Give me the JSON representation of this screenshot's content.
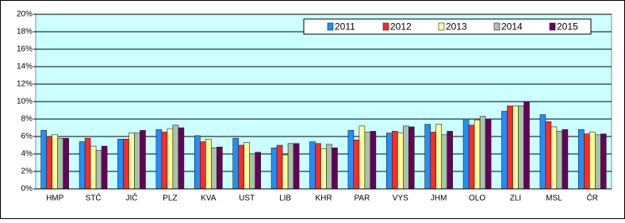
{
  "chart_data": {
    "type": "bar",
    "categories": [
      "HMP",
      "STČ",
      "JIČ",
      "PLZ",
      "KVA",
      "UST",
      "LIB",
      "KHR",
      "PAR",
      "VYS",
      "JHM",
      "OLO",
      "ZLI",
      "MSL",
      "ČR"
    ],
    "series": [
      {
        "name": "2011",
        "color": "#1e90ff",
        "values": [
          6.7,
          5.4,
          5.7,
          6.8,
          6.1,
          5.8,
          4.7,
          5.4,
          6.7,
          6.4,
          7.4,
          8.0,
          8.9,
          8.5,
          6.8
        ]
      },
      {
        "name": "2012",
        "color": "#ff2a2a",
        "values": [
          6.0,
          5.8,
          5.7,
          6.5,
          5.4,
          5.0,
          5.0,
          5.2,
          5.6,
          6.6,
          6.5,
          7.3,
          9.5,
          7.7,
          6.3
        ]
      },
      {
        "name": "2013",
        "color": "#ffff99",
        "values": [
          6.2,
          4.9,
          6.4,
          6.9,
          5.7,
          5.3,
          3.9,
          4.6,
          7.2,
          6.4,
          7.4,
          7.9,
          9.5,
          7.1,
          6.5
        ]
      },
      {
        "name": "2014",
        "color": "#a8c4a8",
        "values": [
          5.8,
          4.4,
          6.4,
          7.3,
          4.7,
          4.0,
          5.2,
          5.1,
          6.5,
          7.2,
          6.2,
          8.3,
          9.5,
          6.6,
          6.2
        ]
      },
      {
        "name": "2015",
        "color": "#66005e",
        "values": [
          5.8,
          4.9,
          6.7,
          7.0,
          4.8,
          4.2,
          5.2,
          4.7,
          6.6,
          7.1,
          6.6,
          8.0,
          10.0,
          6.8,
          6.3
        ]
      }
    ],
    "ylim": [
      0,
      20
    ],
    "yticks": [
      {
        "value": 0,
        "label": "0%"
      },
      {
        "value": 2,
        "label": "2%"
      },
      {
        "value": 4,
        "label": "4%"
      },
      {
        "value": 6,
        "label": "6%"
      },
      {
        "value": 8,
        "label": "8%"
      },
      {
        "value": 10,
        "label": "10%"
      },
      {
        "value": 12,
        "label": "12%"
      },
      {
        "value": 14,
        "label": "14%"
      },
      {
        "value": 16,
        "label": "16%"
      },
      {
        "value": 18,
        "label": "18%"
      },
      {
        "value": 20,
        "label": "20%"
      }
    ],
    "grid": true,
    "legend": "top-right"
  }
}
